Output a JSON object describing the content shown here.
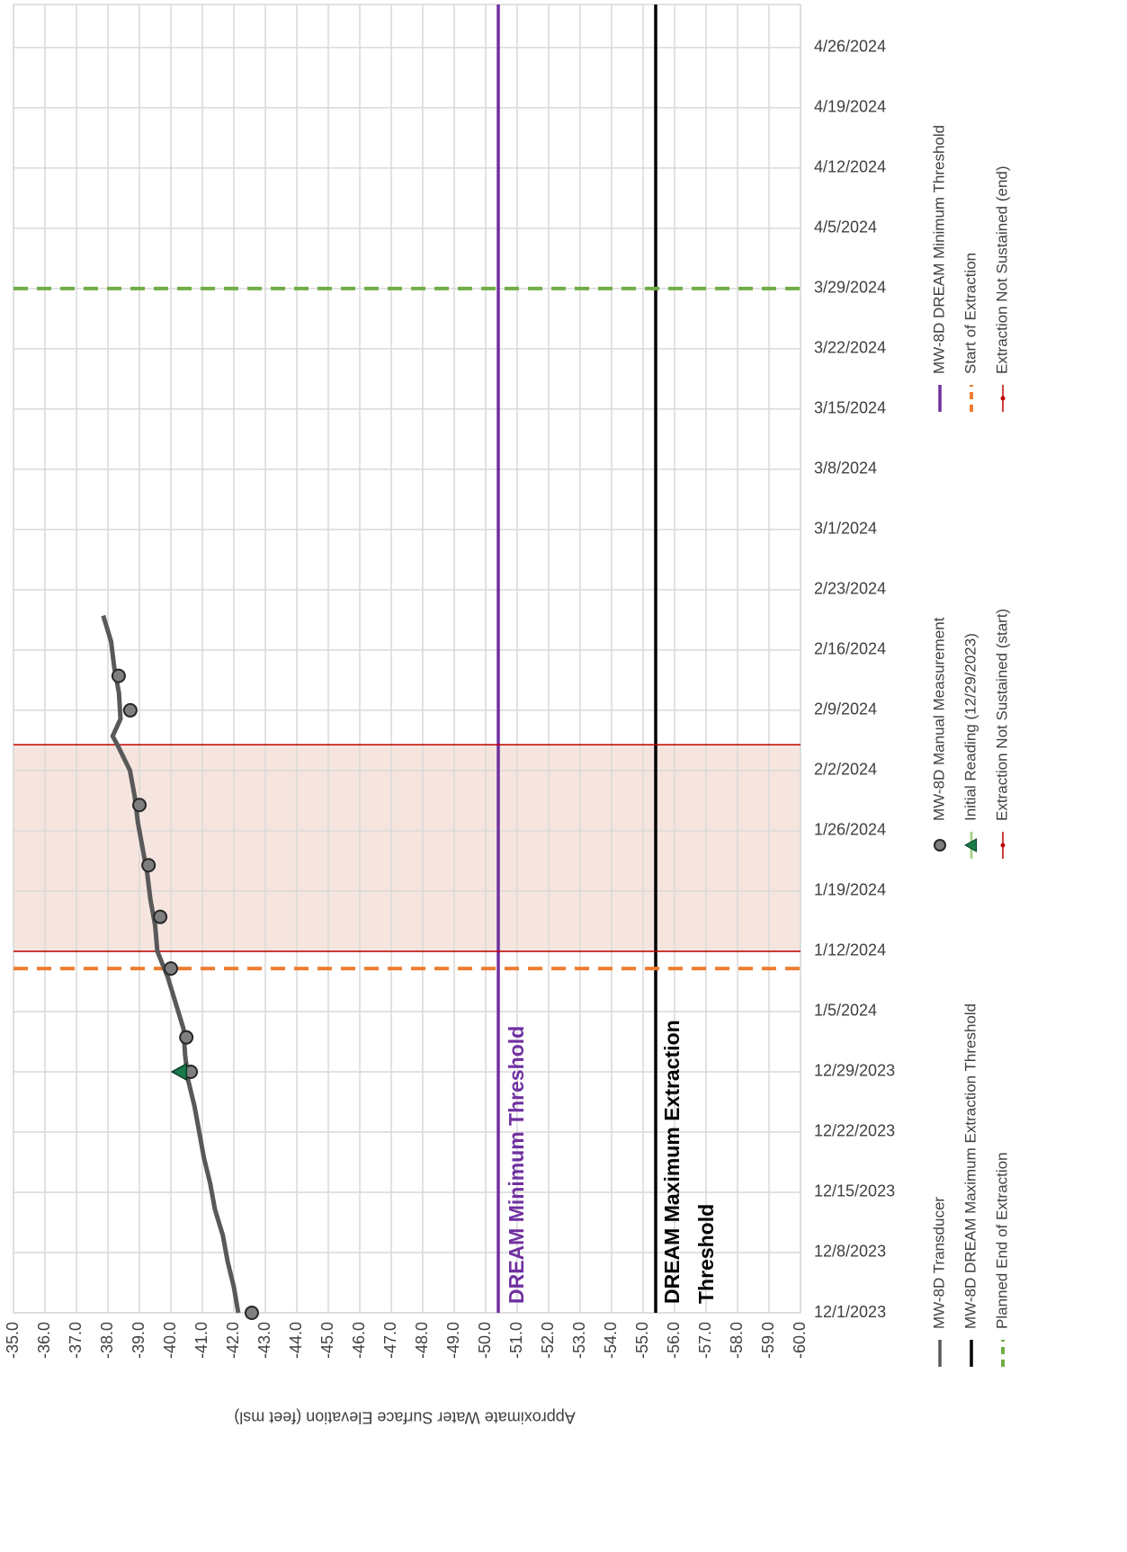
{
  "chart_data": {
    "type": "line",
    "y_axis_label": "Approximate Water Surface Elevation (feet msl)",
    "xlim": [
      "12/1/2023",
      "5/1/2024"
    ],
    "xticks": [
      "12/1/2023",
      "12/8/2023",
      "12/15/2023",
      "12/22/2023",
      "12/29/2023",
      "1/5/2024",
      "1/12/2024",
      "1/19/2024",
      "1/26/2024",
      "2/2/2024",
      "2/9/2024",
      "2/16/2024",
      "2/23/2024",
      "3/1/2024",
      "3/8/2024",
      "3/15/2024",
      "3/22/2024",
      "3/29/2024",
      "4/5/2024",
      "4/12/2024",
      "4/19/2024",
      "4/26/2024"
    ],
    "ylim": [
      -60,
      -35
    ],
    "yticks": [
      {
        "value": -35,
        "label": "-35.0"
      },
      {
        "value": -36,
        "label": "-36.0"
      },
      {
        "value": -37,
        "label": "-37.0"
      },
      {
        "value": -38,
        "label": "-38.0"
      },
      {
        "value": -39,
        "label": "-39.0"
      },
      {
        "value": -40,
        "label": "-40.0"
      },
      {
        "value": -41,
        "label": "-41.0"
      },
      {
        "value": -42,
        "label": "-42.0"
      },
      {
        "value": -43,
        "label": "-43.0"
      },
      {
        "value": -44,
        "label": "-44.0"
      },
      {
        "value": -45,
        "label": "-45.0"
      },
      {
        "value": -46,
        "label": "-46.0"
      },
      {
        "value": -47,
        "label": "-47.0"
      },
      {
        "value": -48,
        "label": "-48.0"
      },
      {
        "value": -49,
        "label": "-49.0"
      },
      {
        "value": -50,
        "label": "-50.0"
      },
      {
        "value": -51,
        "label": "-51.0"
      },
      {
        "value": -52,
        "label": "-52.0"
      },
      {
        "value": -53,
        "label": "-53.0"
      },
      {
        "value": -54,
        "label": "-54.0"
      },
      {
        "value": -55,
        "label": "-55.0"
      },
      {
        "value": -56,
        "label": "-56.0"
      },
      {
        "value": -57,
        "label": "-57.0"
      },
      {
        "value": -58,
        "label": "-58.0"
      },
      {
        "value": -59,
        "label": "-59.0"
      },
      {
        "value": -60,
        "label": "-60.0"
      }
    ],
    "grid": true,
    "series": [
      {
        "name": "MW-8D Transducer",
        "kind": "line",
        "color": "#595959",
        "x": [
          "12/1/2023",
          "12/4/2023",
          "12/7/2023",
          "12/10/2023",
          "12/13/2023",
          "12/16/2023",
          "12/19/2023",
          "12/22/2023",
          "12/25/2023",
          "12/28/2023",
          "12/31/2023",
          "1/3/2024",
          "1/6/2024",
          "1/9/2024",
          "1/12/2024",
          "1/15/2024",
          "1/18/2024",
          "1/21/2024",
          "1/24/2024",
          "1/27/2024",
          "1/30/2024",
          "2/2/2024",
          "2/5/2024",
          "2/6/2024",
          "2/8/2024",
          "2/11/2024",
          "2/14/2024",
          "2/17/2024",
          "2/20/2024"
        ],
        "values": [
          -42.14,
          -42.0,
          -41.8,
          -41.65,
          -41.4,
          -41.25,
          -41.05,
          -40.9,
          -40.75,
          -40.55,
          -40.45,
          -40.4,
          -40.15,
          -39.9,
          -39.57,
          -39.5,
          -39.35,
          -39.25,
          -39.1,
          -38.95,
          -38.85,
          -38.7,
          -38.3,
          -38.15,
          -38.4,
          -38.35,
          -38.2,
          -38.1,
          -37.85
        ]
      },
      {
        "name": "MW-8D DREAM Maximum Extraction Threshold",
        "kind": "hline",
        "color": "#000000",
        "value": -55.4
      },
      {
        "name": "Planned End of Extraction",
        "kind": "vline",
        "color": "#70ad47",
        "dashed": true,
        "x": "3/29/2024"
      },
      {
        "name": "MW-8D Manual Measurement",
        "kind": "circle",
        "color": "#7f7f7f",
        "x": [
          "12/1/2023",
          "12/29/2023",
          "1/2/2024",
          "1/10/2024",
          "1/16/2024",
          "1/22/2024",
          "1/29/2024",
          "2/9/2024",
          "2/13/2024"
        ],
        "values": [
          -42.57,
          -40.63,
          -40.49,
          -40.0,
          -39.66,
          -39.29,
          -39.0,
          -38.71,
          -38.34
        ]
      },
      {
        "name": "Initial Reading (12/29/2023)",
        "kind": "triangle",
        "color": "#1a7a4a",
        "x": [
          "12/29/2023"
        ],
        "values": [
          -40.29
        ]
      },
      {
        "name": "Extraction Not Sustained (start)",
        "kind": "vline",
        "color": "#c00000",
        "x": "1/12/2024"
      },
      {
        "name": "MW-8D DREAM Minimum Threshold",
        "kind": "hline",
        "color": "#7030a0",
        "value": -50.4
      },
      {
        "name": "Start of Extraction",
        "kind": "vline",
        "color": "#ed7d31",
        "dashed": true,
        "x": "1/10/2024"
      },
      {
        "name": "Extraction Not Sustained (end)",
        "kind": "vline",
        "color": "#c00000",
        "x": "2/5/2024"
      }
    ],
    "shade_color": "#f2dcd3",
    "annotations": [
      {
        "text": "DREAM Minimum Threshold",
        "color": "#7030a0"
      },
      {
        "text": "DREAM Maximum Extraction",
        "color": "#000000"
      },
      {
        "text": "Threshold",
        "color": "#000000"
      }
    ]
  }
}
